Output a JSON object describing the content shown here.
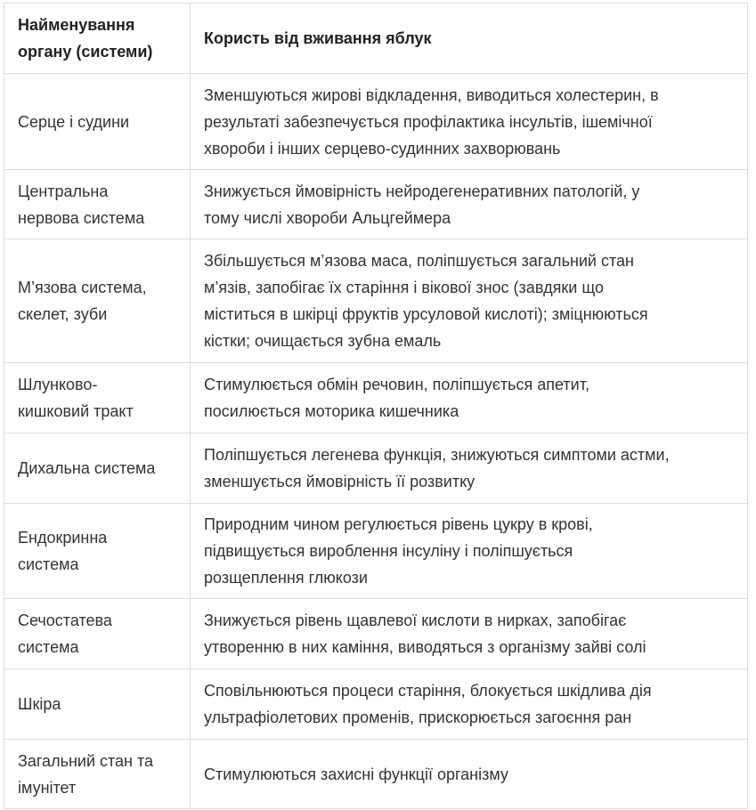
{
  "header": {
    "col1": "Найменування\nоргану (системи)",
    "col2": "Користь від вживання яблук"
  },
  "rows": [
    {
      "organ": "Серце і судини",
      "benefit": "Зменшуються жирові відкладення, виводиться холестерин, в\nрезультаті забезпечується профілактика інсультів, ішемічної\nхвороби і інших серцево-судинних захворювань"
    },
    {
      "organ": "Центральна\nнервова система",
      "benefit": "Знижується ймовірність нейродегенеративних патологій, у\nтому числі хвороби Альцгеймера"
    },
    {
      "organ": "М’язова система,\nскелет, зуби",
      "benefit": "Збільшується м’язова маса, поліпшується загальний стан\nм’язів, запобігає їх старіння і вікової знос (завдяки що\nміститься в шкірці фруктів урсуловой кислоті); зміцнюються\nкістки; очищається зубна емаль"
    },
    {
      "organ": "Шлунково-\nкишковий тракт",
      "benefit": "Стимулюється обмін речовин, поліпшується апетит,\nпосилюється моторика кишечника"
    },
    {
      "organ": "Дихальна система",
      "benefit": "Поліпшується легенева функція, знижуються симптоми астми,\nзменшується ймовірність її розвитку"
    },
    {
      "organ": "Ендокринна\nсистема",
      "benefit": "Природним чином регулюється рівень цукру в крові,\nпідвищується вироблення інсуліну і поліпшується\nрозщеплення глюкози"
    },
    {
      "organ": "Сечостатева\nсистема",
      "benefit": "Знижується рівень щавлевої кислоти в нирках, запобігає\nутворенню в них каміння, виводяться з організму зайві солі"
    },
    {
      "organ": "Шкіра",
      "benefit": "Сповільнюються процеси старіння, блокується шкідлива дія\nультрафіолетових променів, прискорюється загоєння ран"
    },
    {
      "organ": "Загальний стан та\nімунітет",
      "benefit": "Стимулюються захисні функції організму"
    }
  ]
}
